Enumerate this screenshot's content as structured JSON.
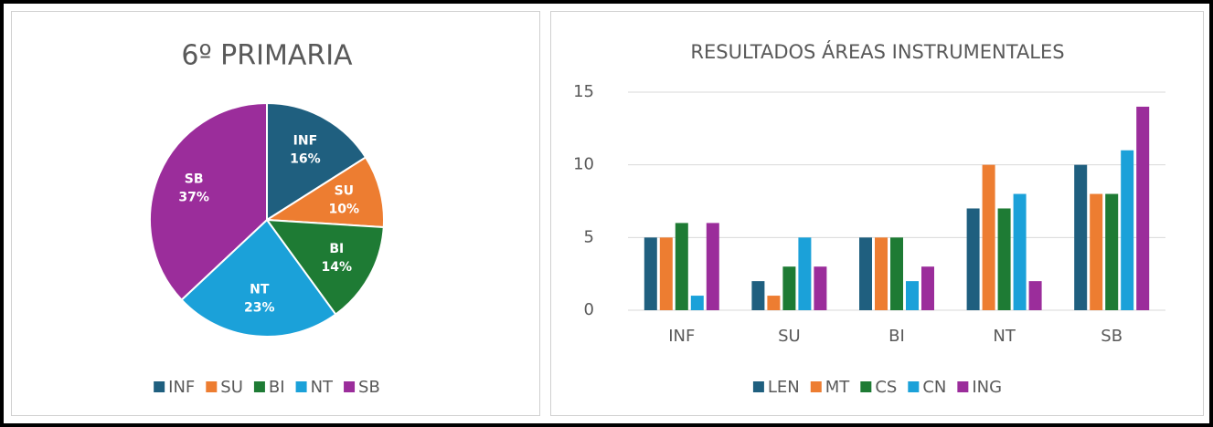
{
  "chart_data": [
    {
      "type": "pie",
      "title": "6º PRIMARIA",
      "categories": [
        "INF",
        "SU",
        "BI",
        "NT",
        "SB"
      ],
      "values": [
        16,
        10,
        14,
        23,
        37
      ],
      "value_labels": [
        "16%",
        "10%",
        "14%",
        "23%",
        "37%"
      ],
      "colors": [
        "#1f5f7f",
        "#ed7d31",
        "#1e7b34",
        "#1ba1d9",
        "#9b2d9b"
      ],
      "legend": "bottom"
    },
    {
      "type": "bar",
      "title": "RESULTADOS ÁREAS INSTRUMENTALES",
      "categories": [
        "INF",
        "SU",
        "BI",
        "NT",
        "SB"
      ],
      "series": [
        {
          "name": "LEN",
          "color": "#1f5f7f",
          "values": [
            5,
            2,
            5,
            7,
            10
          ]
        },
        {
          "name": "MT",
          "color": "#ed7d31",
          "values": [
            5,
            1,
            5,
            10,
            8
          ]
        },
        {
          "name": "CS",
          "color": "#1e7b34",
          "values": [
            6,
            3,
            5,
            7,
            8
          ]
        },
        {
          "name": "CN",
          "color": "#1ba1d9",
          "values": [
            1,
            5,
            2,
            8,
            11
          ]
        },
        {
          "name": "ING",
          "color": "#9b2d9b",
          "values": [
            6,
            3,
            3,
            2,
            14
          ]
        }
      ],
      "ylim": [
        0,
        15
      ],
      "yticks": [
        0,
        5,
        10,
        15
      ],
      "grid": true,
      "legend": "bottom"
    }
  ]
}
